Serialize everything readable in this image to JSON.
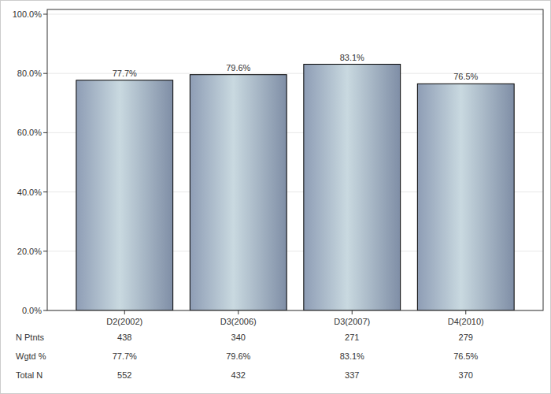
{
  "chart_data": {
    "type": "bar",
    "categories": [
      "D2(2002)",
      "D3(2006)",
      "D3(2007)",
      "D4(2010)"
    ],
    "values": [
      77.7,
      79.6,
      83.1,
      76.5
    ],
    "value_labels": [
      "77.7%",
      "79.6%",
      "83.1%",
      "76.5%"
    ],
    "data_labels": true,
    "color": "#a9b9cc",
    "ylim": [
      0,
      100
    ],
    "yticks": [
      {
        "value": 0,
        "label": "0.0%"
      },
      {
        "value": 20,
        "label": "20.0%"
      },
      {
        "value": 40,
        "label": "40.0%"
      },
      {
        "value": 60,
        "label": "60.0%"
      },
      {
        "value": 80,
        "label": "80.0%"
      },
      {
        "value": 100,
        "label": "100.0%"
      }
    ],
    "grid": true
  },
  "table": {
    "rows": [
      {
        "label": "N Ptnts",
        "values": [
          "438",
          "340",
          "271",
          "279"
        ]
      },
      {
        "label": "Wgtd %",
        "values": [
          "77.7%",
          "79.6%",
          "83.1%",
          "76.5%"
        ]
      },
      {
        "label": "Total N",
        "values": [
          "552",
          "432",
          "337",
          "370"
        ]
      }
    ]
  }
}
